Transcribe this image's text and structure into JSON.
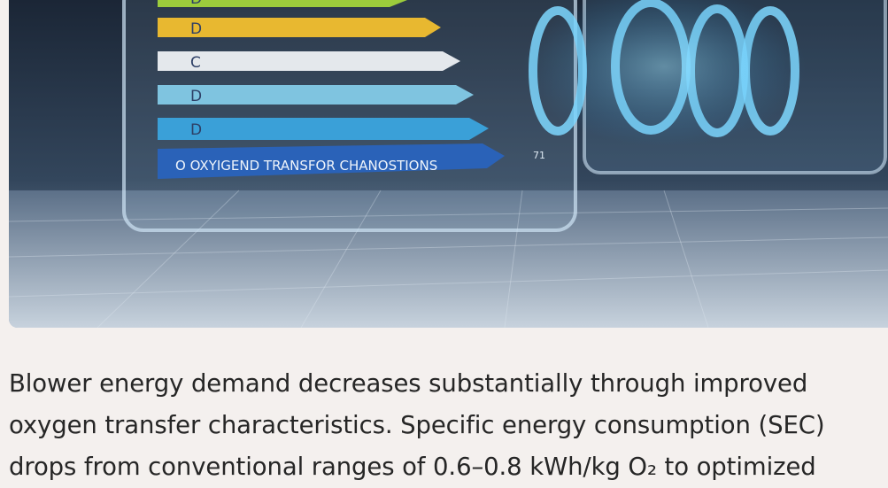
{
  "image": {
    "bar_labels": [
      "D",
      "D",
      "C",
      "D",
      "D"
    ],
    "caption_bar": "O  OXYIGEND TRANSFOR CHANOSTIONS",
    "readout": "71"
  },
  "paragraph": "Blower energy demand decreases substantially through improved oxygen transfer characteristics. Specific energy consumption (SEC) drops from conventional ranges of 0.6–0.8 kWh/kg O₂ to optimized"
}
